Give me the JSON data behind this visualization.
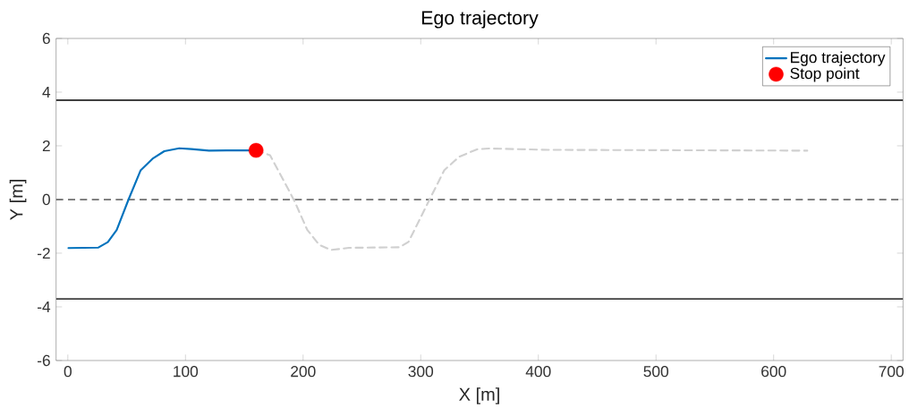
{
  "chart_data": {
    "type": "line",
    "title": "Ego trajectory",
    "xlabel": "X [m]",
    "ylabel": "Y [m]",
    "xlim": [
      -10,
      710
    ],
    "ylim": [
      -6,
      6
    ],
    "xticks": [
      0,
      100,
      200,
      300,
      400,
      500,
      600,
      700
    ],
    "yticks": [
      -6,
      -4,
      -2,
      0,
      2,
      4,
      6
    ],
    "grid": false,
    "legend": "top right",
    "ref_lines": [
      {
        "axis": "y",
        "value": 3.7,
        "color": "#000000",
        "line_style": "solid"
      },
      {
        "axis": "y",
        "value": -3.7,
        "color": "#000000",
        "line_style": "solid"
      },
      {
        "axis": "y",
        "value": 0,
        "color": "#404040",
        "line_style": "dashed"
      }
    ],
    "series": [
      {
        "color": "#d0d0d0",
        "line_style": "dashed",
        "marker": "none",
        "x": [
          160,
          171.9,
          188.3,
          193.4,
          203.5,
          213.7,
          223.8,
          239,
          282,
          289.6,
          307.3,
          320,
          332.6,
          347.8,
          357.9,
          408.5,
          628.6
        ],
        "values": [
          1.83,
          1.65,
          0.31,
          -0.13,
          -1.13,
          -1.69,
          -1.88,
          -1.8,
          -1.78,
          -1.58,
          -0.02,
          1.09,
          1.59,
          1.87,
          1.9,
          1.85,
          1.82
        ]
      },
      {
        "name": "Ego trajectory",
        "color": "#0072bd",
        "line_style": "solid",
        "marker": "none",
        "x": [
          0.5,
          26,
          34,
          41.5,
          51.6,
          61.8,
          72,
          82,
          94.7,
          105,
          120,
          135,
          160
        ],
        "values": [
          -1.81,
          -1.79,
          -1.59,
          -1.14,
          0,
          1.08,
          1.52,
          1.8,
          1.91,
          1.88,
          1.82,
          1.83,
          1.83
        ]
      },
      {
        "name": "Stop point",
        "type": "scatter",
        "color": "#ff0000",
        "marker": "circle",
        "x": [
          160
        ],
        "values": [
          1.83
        ]
      }
    ]
  }
}
